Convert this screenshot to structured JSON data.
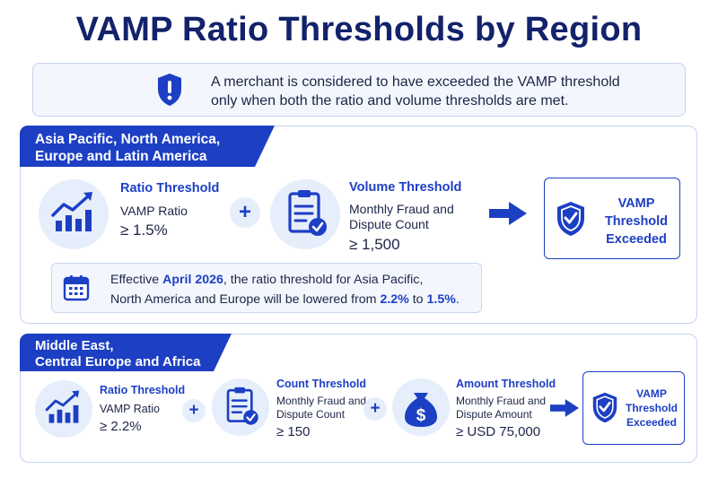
{
  "title": "VAMP Ratio Thresholds by Region",
  "notice": {
    "line1": "A merchant is considered to have exceeded the VAMP threshold",
    "line2": "only when both the ratio and volume thresholds are met.",
    "icon": "shield-alert-icon"
  },
  "colors": {
    "primary": "#1d3fc4",
    "navy": "#13226b",
    "light": "#e6eefb"
  },
  "regions": [
    {
      "tag_line1": "Asia Pacific, North America,",
      "tag_line2": "Europe and Latin America",
      "ratio": {
        "heading": "Ratio Threshold",
        "label": "VAMP Ratio",
        "value": "≥ 1.5%"
      },
      "plus": "+",
      "volume": {
        "heading": "Volume Threshold",
        "label_line1": "Monthly Fraud and",
        "label_line2": "Dispute Count",
        "value": "≥ 1,500"
      },
      "result": {
        "line1": "VAMP",
        "line2": "Threshold",
        "line3": "Exceeded"
      },
      "callout": {
        "t1": "Effective ",
        "date": "April 2026",
        "t2": ", the ratio threshold for Asia Pacific,",
        "t3": "North America and Europe will be lowered from ",
        "from": "2.2%",
        "t4": " to ",
        "to": "1.5%",
        "t5": "."
      }
    },
    {
      "tag_line1": "Middle East,",
      "tag_line2": "Central Europe and Africa",
      "ratio": {
        "heading": "Ratio Threshold",
        "label": "VAMP Ratio",
        "value": "≥ 2.2%"
      },
      "plus": "+",
      "count": {
        "heading": "Count Threshold",
        "label_line1": "Monthly Fraud and",
        "label_line2": "Dispute Count",
        "value": "≥ 150"
      },
      "amount": {
        "heading": "Amount Threshold",
        "label_line1": "Monthly Fraud and",
        "label_line2": "Dispute Amount",
        "value": "≥ USD 75,000"
      },
      "result": {
        "line1": "VAMP",
        "line2": "Threshold",
        "line3": "Exceeded"
      }
    }
  ]
}
